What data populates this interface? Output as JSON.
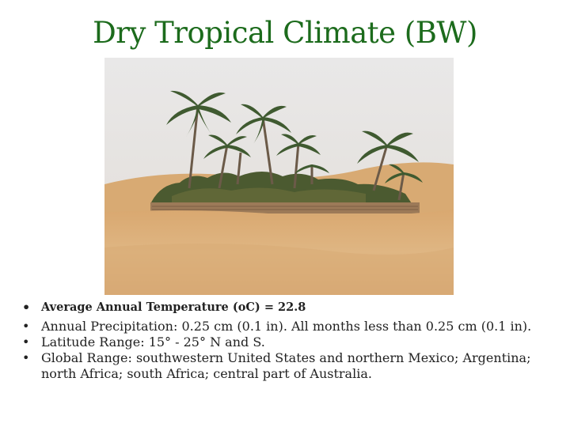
{
  "slide": {
    "title": "Dry Tropical Climate (BW)",
    "photo_alt": "desert oasis with palm trees",
    "bullet_glyph": "•",
    "bullets": [
      "Average Annual Temperature (oC) = 22.8",
      "Annual Precipitation: 0.25 cm (0.1 in). All months less than 0.25 cm (0.1 in).",
      "Latitude Range: 15° - 25° N and S.",
      "Global Range: southwestern United States and northern Mexico; Argentina; north Africa; south Africa; central part of Australia."
    ]
  },
  "colors": {
    "title": "#1c6b1c",
    "sky": "#e6e4e2",
    "sand": "#dcb07c",
    "palm_green": "#3c5a2c",
    "text": "#222222"
  }
}
